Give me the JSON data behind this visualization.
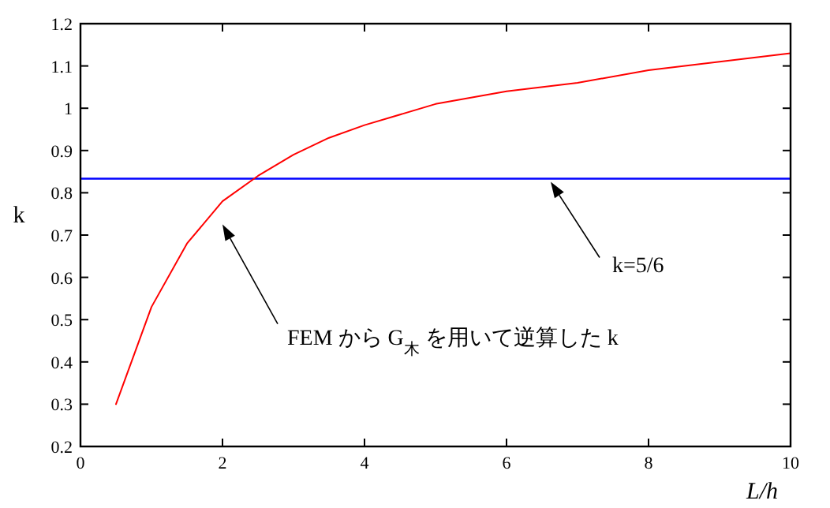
{
  "chart_data": {
    "type": "line",
    "xlabel": "L/h",
    "ylabel": "k",
    "x": [
      0.5,
      1,
      1.5,
      2,
      2.5,
      3,
      3.5,
      4,
      5,
      6,
      7,
      8,
      9,
      10
    ],
    "series": [
      {
        "color": "#ff0000",
        "values": [
          0.3,
          0.53,
          0.68,
          0.78,
          0.84,
          0.89,
          0.93,
          0.96,
          1.01,
          1.04,
          1.06,
          1.09,
          1.11,
          1.13
        ]
      }
    ],
    "xlim": [
      0,
      10
    ],
    "ylim": [
      0.2,
      1.2
    ],
    "xticks": [
      0,
      2,
      4,
      6,
      8,
      10
    ],
    "yticks": [
      0.2,
      0.3,
      0.4,
      0.5,
      0.6,
      0.7,
      0.8,
      0.9,
      1,
      1.1,
      1.2
    ],
    "ref_lines": [
      {
        "axis": "y",
        "value": 0.8333,
        "color": "#0000ff"
      }
    ],
    "annotations": [
      "FEM から G$_{木}$ を用いて逆算した k",
      "k=5/6"
    ],
    "grid": false,
    "marker": "none",
    "line_style": "solid"
  }
}
